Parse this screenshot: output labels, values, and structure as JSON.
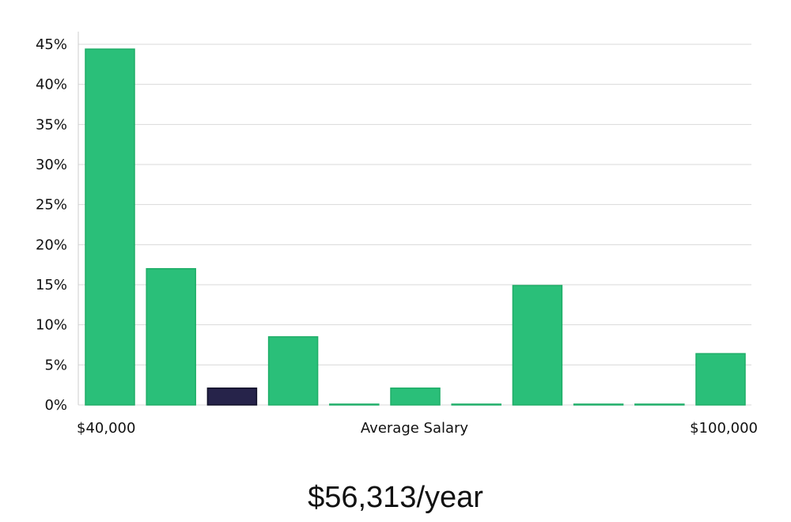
{
  "chart_data": {
    "type": "bar",
    "title": "",
    "xlabel": "Average Salary",
    "ylabel": "",
    "x_range_labels": [
      "$40,000",
      "$100,000"
    ],
    "ylim": [
      0,
      45
    ],
    "yticks": [
      0,
      5,
      10,
      15,
      20,
      25,
      30,
      35,
      40,
      45
    ],
    "ytick_labels": [
      "0%",
      "5%",
      "10%",
      "15%",
      "20%",
      "25%",
      "30%",
      "35%",
      "40%",
      "45%"
    ],
    "bin_count": 11,
    "values": [
      44.4,
      17.0,
      2.1,
      8.5,
      0.1,
      2.1,
      0.1,
      14.9,
      0.1,
      0.1,
      6.4
    ],
    "highlight_index": 2,
    "bar_color": "#2abf79",
    "bar_edge_color": "#1fae68",
    "highlight_color": "#26234a",
    "highlight_edge_color": "#101028",
    "grid": true
  },
  "summary": {
    "salary": "$56,313/year"
  }
}
